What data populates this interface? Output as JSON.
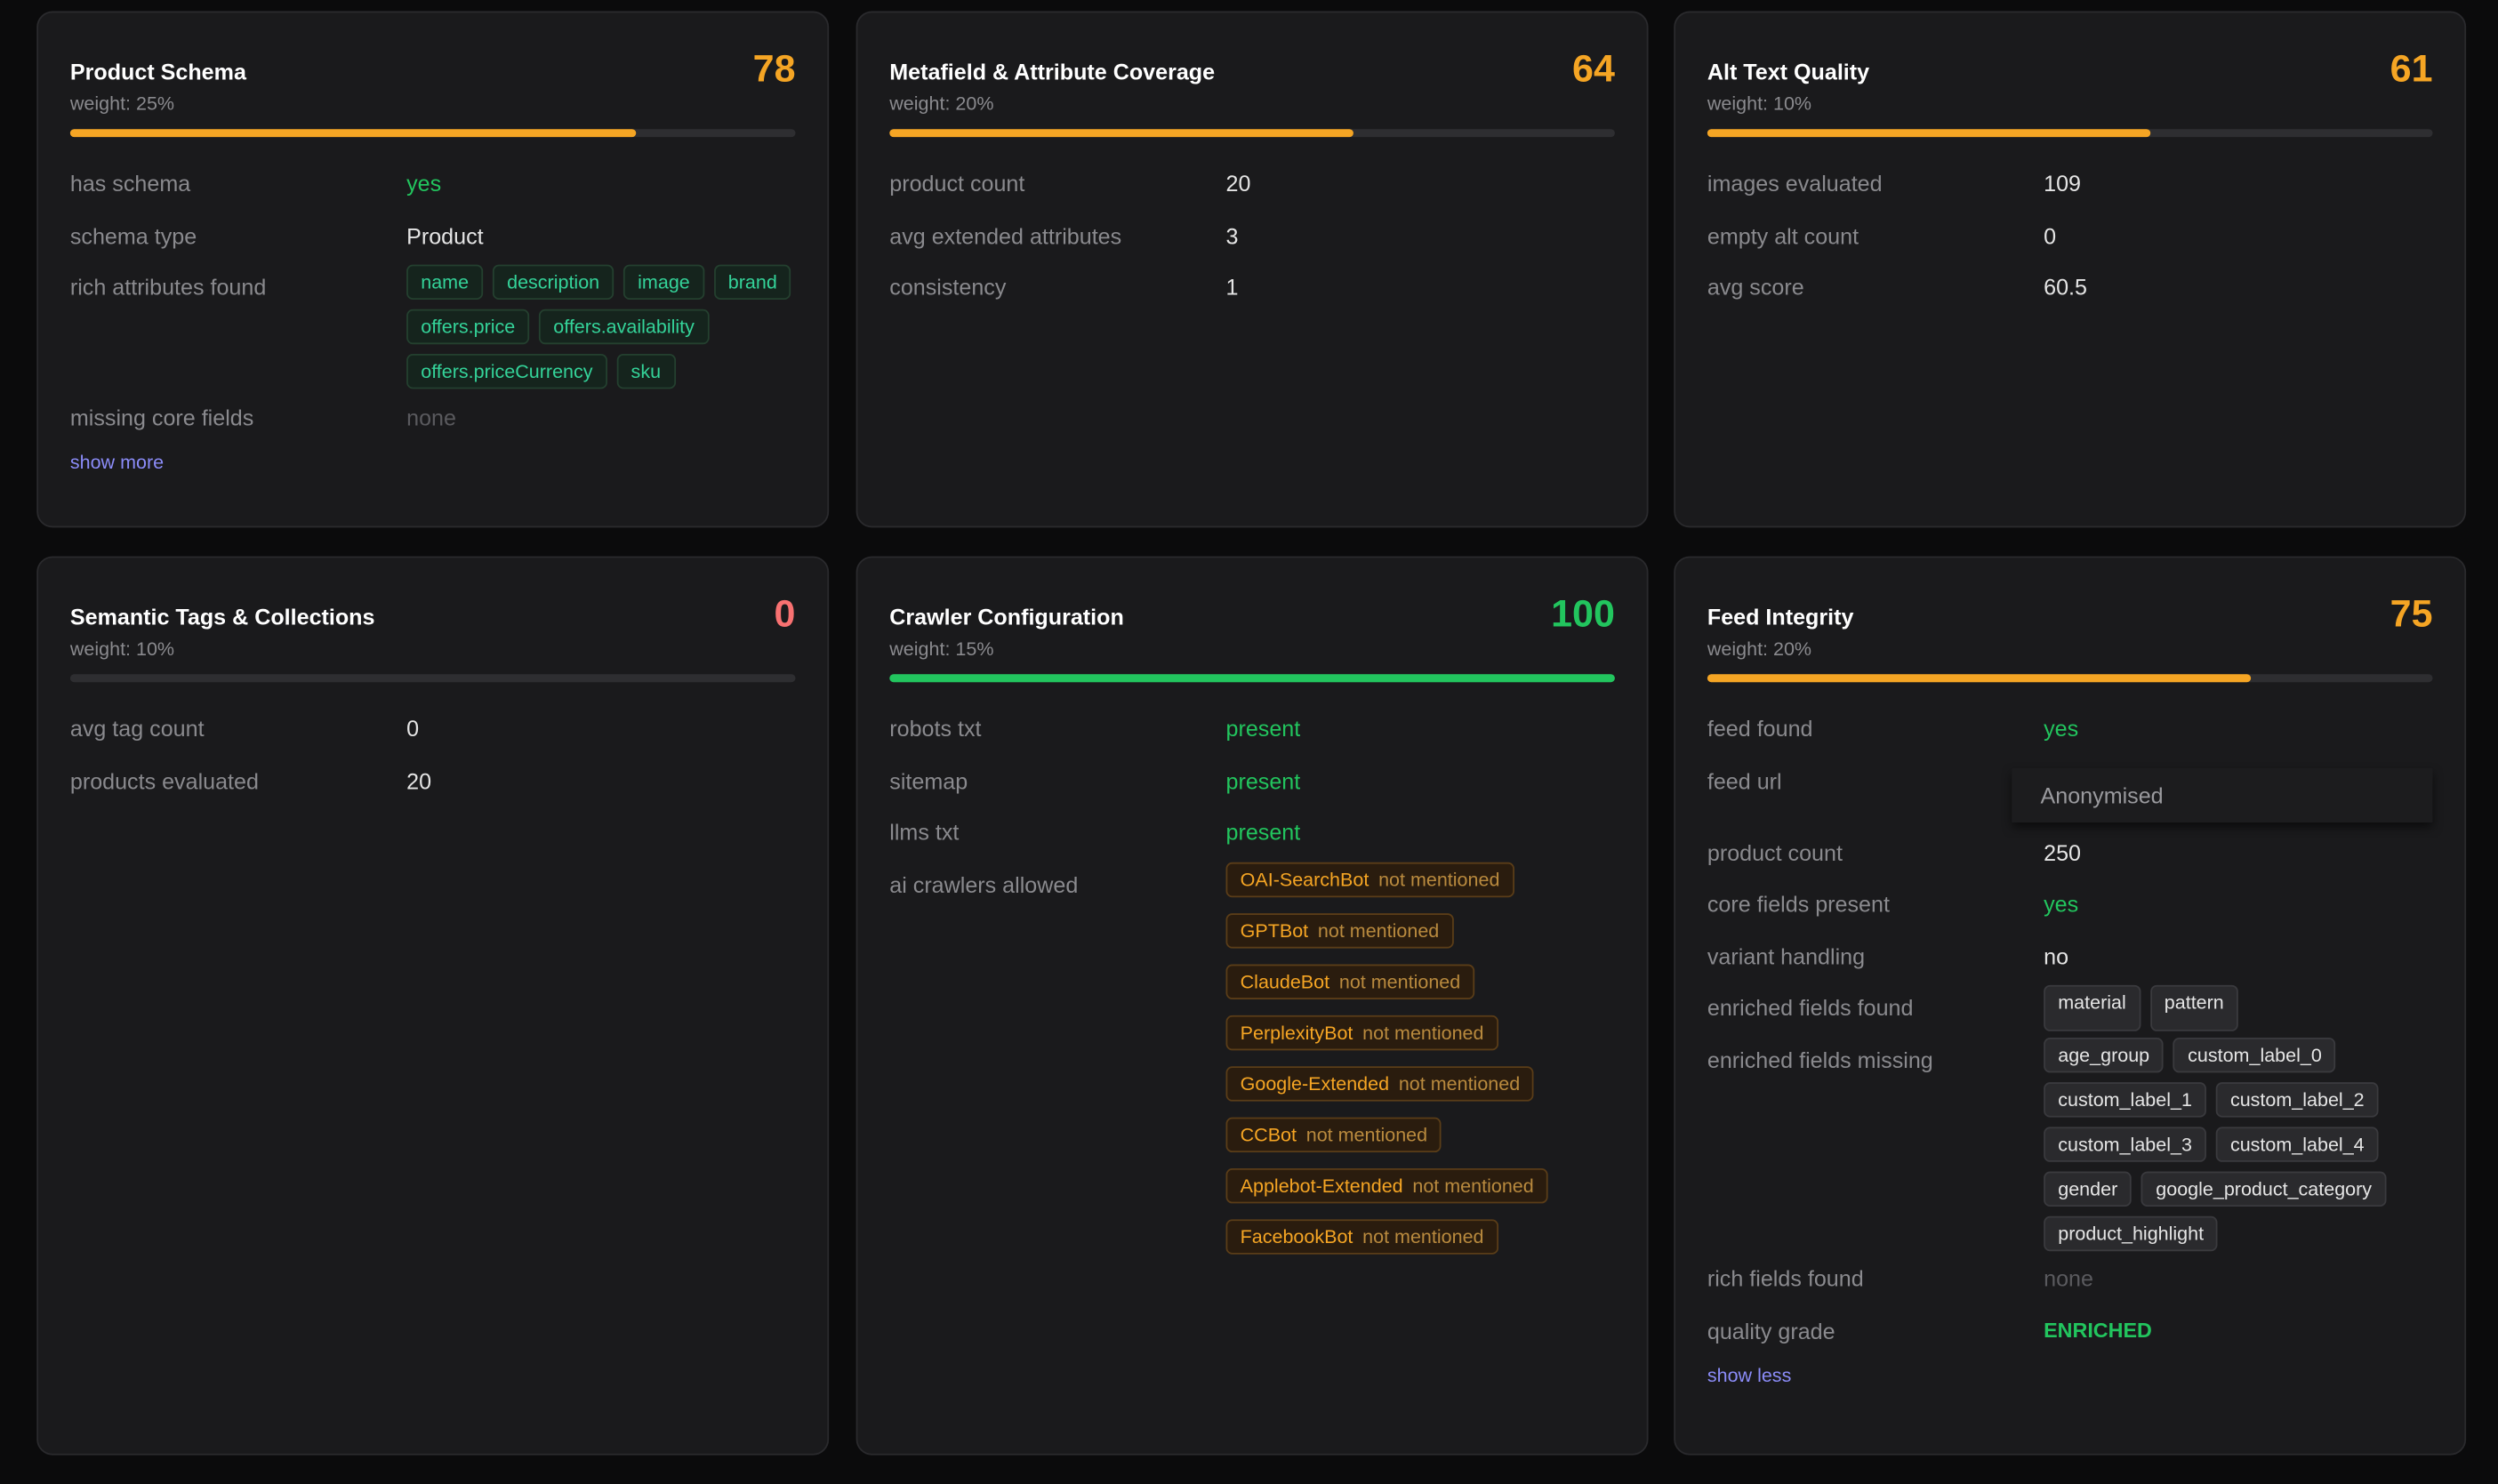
{
  "cards": [
    {
      "title": "Product Schema",
      "weight": "weight: 25%",
      "score": 78,
      "color": "#f5a524",
      "rows": [
        {
          "label": "has schema",
          "value": "yes",
          "color": "#22c55e"
        },
        {
          "label": "schema type",
          "value": "Product"
        },
        {
          "label": "rich attributes found",
          "tags": [
            "name",
            "description",
            "image",
            "brand",
            "offers.price",
            "offers.availability",
            "offers.priceCurrency",
            "sku"
          ],
          "tag_color": "#34d399"
        },
        {
          "label": "missing core fields",
          "value": "none",
          "color": "#5a5a5e"
        }
      ],
      "link": "show more"
    },
    {
      "title": "Metafield & Attribute Coverage",
      "weight": "weight: 20%",
      "score": 64,
      "color": "#f5a524",
      "rows": [
        {
          "label": "product count",
          "value": "20"
        },
        {
          "label": "avg extended attributes",
          "value": "3"
        },
        {
          "label": "consistency",
          "value": "1"
        }
      ]
    },
    {
      "title": "Alt Text Quality",
      "weight": "weight: 10%",
      "score": 61,
      "color": "#f5a524",
      "rows": [
        {
          "label": "images evaluated",
          "value": "109"
        },
        {
          "label": "empty alt count",
          "value": "0"
        },
        {
          "label": "avg score",
          "value": "60.5"
        }
      ]
    },
    {
      "title": "Semantic Tags & Collections",
      "weight": "weight: 10%",
      "score": 0,
      "color": "#f87171",
      "rows": [
        {
          "label": "avg tag count",
          "value": "0"
        },
        {
          "label": "products evaluated",
          "value": "20"
        }
      ]
    },
    {
      "title": "Crawler Configuration",
      "weight": "weight: 15%",
      "score": 100,
      "color": "#22c55e",
      "rows": [
        {
          "label": "robots txt",
          "value": "present",
          "color": "#22c55e"
        },
        {
          "label": "sitemap",
          "value": "present",
          "color": "#22c55e"
        },
        {
          "label": "llms txt",
          "value": "present",
          "color": "#22c55e"
        },
        {
          "label": "ai crawlers allowed",
          "tags": [
            {
              "name": "OAI-SearchBot",
              "status": "not mentioned"
            },
            {
              "name": "GPTBot",
              "status": "not mentioned"
            },
            {
              "name": "ClaudeBot",
              "status": "not mentioned"
            },
            {
              "name": "PerplexityBot",
              "status": "not mentioned"
            },
            {
              "name": "Google-Extended",
              "status": "not mentioned"
            },
            {
              "name": "CCBot",
              "status": "not mentioned"
            },
            {
              "name": "Applebot-Extended",
              "status": "not mentioned"
            },
            {
              "name": "FacebookBot",
              "status": "not mentioned"
            }
          ],
          "tag_color": "#f5a524",
          "stacked": true
        }
      ]
    },
    {
      "title": "Feed Integrity",
      "weight": "weight: 20%",
      "score": 75,
      "color": "#f5a524",
      "rows": [
        {
          "label": "feed found",
          "value": "yes",
          "color": "#22c55e"
        },
        {
          "label": "feed url",
          "value": "Anonymised",
          "boxed": true
        },
        {
          "label": "product count",
          "value": "250"
        },
        {
          "label": "core fields present",
          "value": "yes",
          "color": "#22c55e"
        },
        {
          "label": "variant handling",
          "value": "no"
        },
        {
          "label": "enriched fields found",
          "tags": [
            "material",
            "pattern"
          ],
          "tag_color": "#e5e5e5"
        },
        {
          "label": "enriched fields missing",
          "tags": [
            "age_group",
            "custom_label_0",
            "custom_label_1",
            "custom_label_2",
            "custom_label_3",
            "custom_label_4",
            "gender",
            "google_product_category",
            "product_highlight"
          ],
          "tag_color": "#e5e5e5"
        },
        {
          "label": "rich fields found",
          "value": "none",
          "color": "#5a5a5e"
        },
        {
          "label": "quality grade",
          "value": "ENRICHED",
          "color": "#22c55e",
          "bold": true
        }
      ],
      "link": "show less"
    }
  ]
}
